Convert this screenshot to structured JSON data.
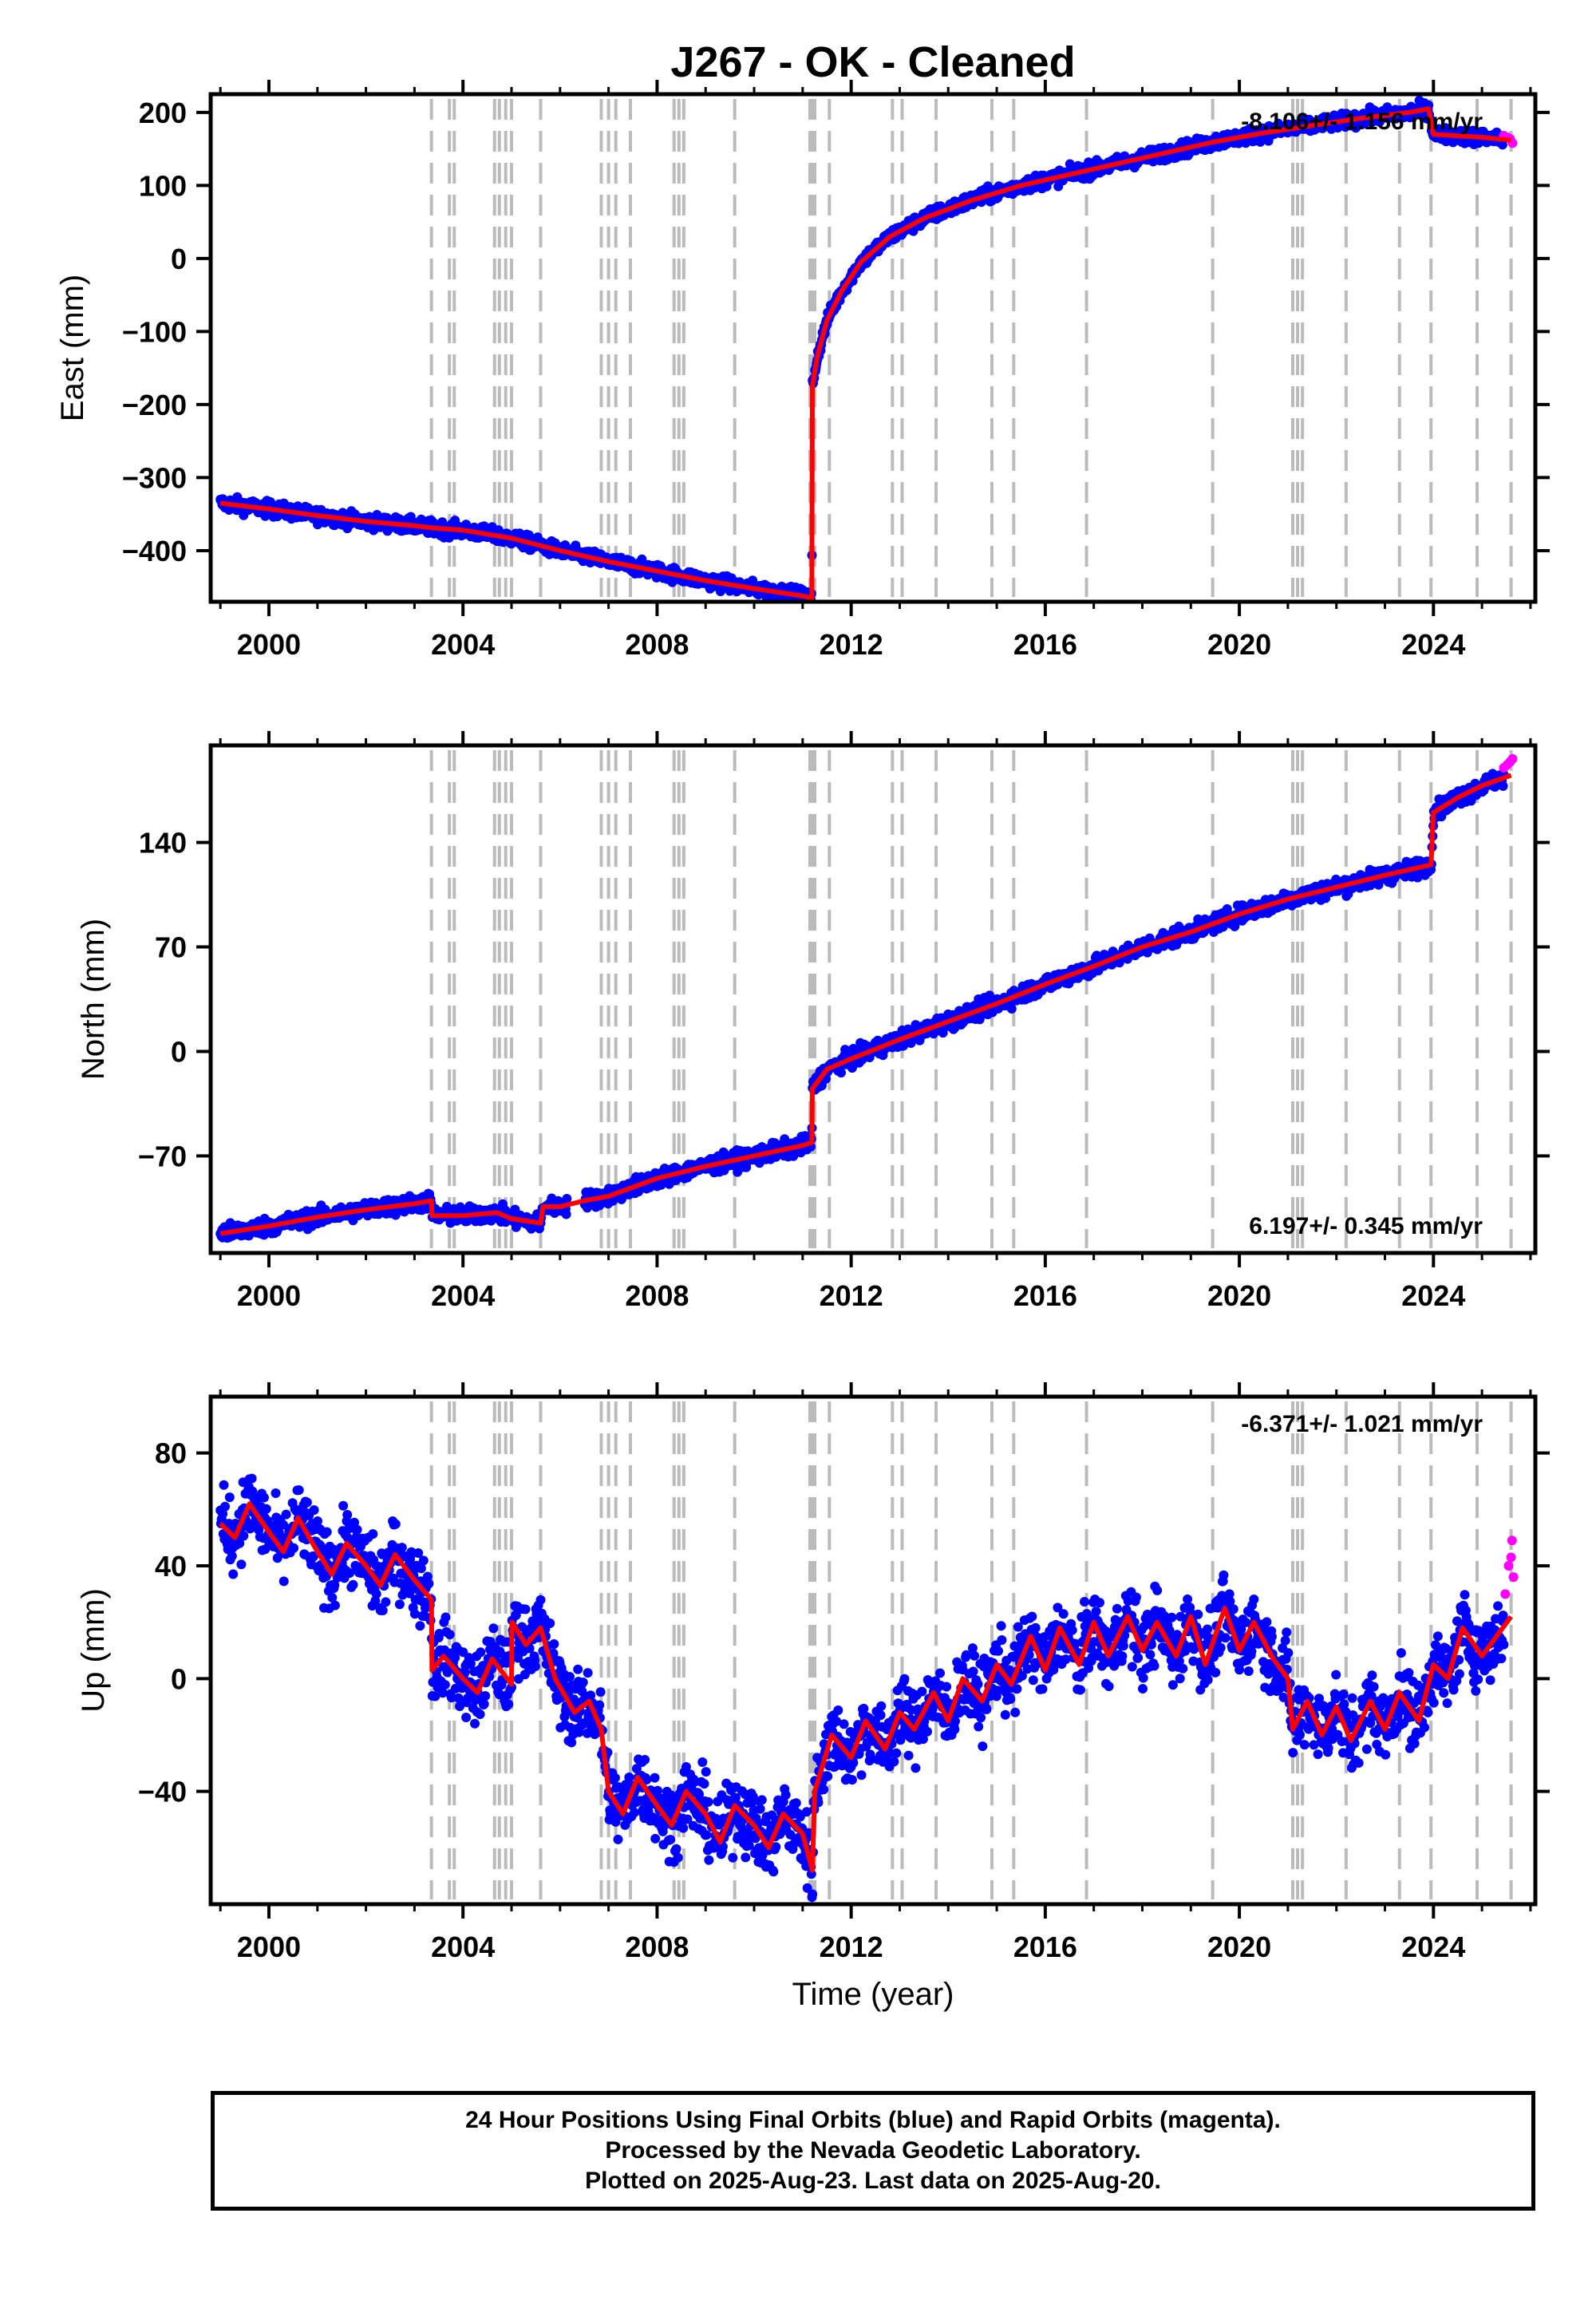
{
  "title": "J267  - OK - Cleaned",
  "xlabel": "Time (year)",
  "footer": {
    "line1": "24 Hour Positions Using Final Orbits (blue) and Rapid Orbits (magenta).",
    "line2": "Processed by the Nevada Geodetic Laboratory.",
    "line3": "Plotted on 2025-Aug-23. Last data on 2025-Aug-20."
  },
  "colors": {
    "final_orbits": "#0000ff",
    "rapid_orbits": "#ff00ff",
    "model": "#ff0000",
    "event_lines": "#bbbbbb",
    "frame": "#000000"
  },
  "chart_data": [
    {
      "type": "scatter",
      "ylabel": "East (mm)",
      "rate_text": "-8.106+/- 1.156 mm/yr",
      "rate_position": "top-right",
      "xlim": [
        1998.8,
        2026.1
      ],
      "ylim": [
        -470,
        225
      ],
      "xticks": [
        2000,
        2004,
        2008,
        2012,
        2016,
        2020,
        2024
      ],
      "yticks": [
        200,
        100,
        0,
        -100,
        -200,
        -300,
        -400
      ],
      "ytick_labels": [
        "200",
        "100",
        "0",
        "−100",
        "−200",
        "−300",
        "−400"
      ],
      "grid": false,
      "event_lines": [
        2003.35,
        2003.72,
        2003.82,
        2004.65,
        2004.75,
        2004.88,
        2005.0,
        2005.6,
        2006.85,
        2007.0,
        2007.15,
        2007.45,
        2008.35,
        2008.45,
        2008.55,
        2009.6,
        2011.15,
        2011.2,
        2011.25,
        2011.55,
        2012.85,
        2013.05,
        2013.75,
        2014.9,
        2015.35,
        2016.85,
        2019.45,
        2021.1,
        2021.2,
        2021.3,
        2022.2,
        2023.3,
        2023.95,
        2024.9,
        2025.6
      ],
      "model": [
        [
          1999.0,
          -335
        ],
        [
          2000.0,
          -343
        ],
        [
          2001.0,
          -352
        ],
        [
          2002.0,
          -360
        ],
        [
          2003.0,
          -366
        ],
        [
          2003.4,
          -369
        ],
        [
          2004.0,
          -372
        ],
        [
          2005.0,
          -383
        ],
        [
          2006.0,
          -400
        ],
        [
          2007.0,
          -415
        ],
        [
          2008.0,
          -428
        ],
        [
          2009.0,
          -441
        ],
        [
          2010.0,
          -452
        ],
        [
          2011.0,
          -462
        ],
        [
          2011.19,
          -465
        ],
        [
          2011.2,
          -175
        ],
        [
          2011.3,
          -135
        ],
        [
          2011.5,
          -85
        ],
        [
          2011.8,
          -45
        ],
        [
          2012.2,
          -5
        ],
        [
          2012.8,
          30
        ],
        [
          2013.5,
          55
        ],
        [
          2014.5,
          80
        ],
        [
          2015.5,
          100
        ],
        [
          2016.5,
          115
        ],
        [
          2017.5,
          130
        ],
        [
          2018.5,
          145
        ],
        [
          2019.5,
          160
        ],
        [
          2020.5,
          172
        ],
        [
          2021.5,
          182
        ],
        [
          2022.5,
          192
        ],
        [
          2023.5,
          200
        ],
        [
          2023.9,
          205
        ],
        [
          2024.0,
          170
        ],
        [
          2024.5,
          168
        ],
        [
          2025.0,
          166
        ],
        [
          2025.6,
          162
        ]
      ],
      "scatter_spread": 7,
      "rapid_points": [
        [
          2025.45,
          168
        ],
        [
          2025.52,
          166
        ],
        [
          2025.58,
          164
        ],
        [
          2025.63,
          158
        ]
      ]
    },
    {
      "type": "scatter",
      "ylabel": "North (mm)",
      "rate_text": "6.197+/- 0.345 mm/yr",
      "rate_position": "bottom-right",
      "xlim": [
        1998.8,
        2026.1
      ],
      "ylim": [
        -135,
        205
      ],
      "xticks": [
        2000,
        2004,
        2008,
        2012,
        2016,
        2020,
        2024
      ],
      "yticks": [
        140,
        70,
        0,
        -70
      ],
      "ytick_labels": [
        "140",
        "70",
        "0",
        "−70"
      ],
      "grid": false,
      "event_lines": [
        2003.35,
        2003.72,
        2003.82,
        2004.65,
        2004.75,
        2004.88,
        2005.0,
        2005.6,
        2006.85,
        2007.0,
        2007.15,
        2007.45,
        2008.35,
        2008.45,
        2008.55,
        2009.6,
        2011.15,
        2011.2,
        2011.25,
        2011.55,
        2012.85,
        2013.05,
        2013.75,
        2014.9,
        2015.35,
        2016.85,
        2019.45,
        2021.1,
        2021.2,
        2021.3,
        2022.2,
        2023.3,
        2023.95,
        2024.9,
        2025.6
      ],
      "model": [
        [
          1999.0,
          -122
        ],
        [
          2000.0,
          -117
        ],
        [
          2001.0,
          -111
        ],
        [
          2002.0,
          -106
        ],
        [
          2003.0,
          -102
        ],
        [
          2003.35,
          -100
        ],
        [
          2003.36,
          -110
        ],
        [
          2004.0,
          -110
        ],
        [
          2004.7,
          -108
        ],
        [
          2005.0,
          -112
        ],
        [
          2005.6,
          -115
        ],
        [
          2005.65,
          -104
        ],
        [
          2006.0,
          -104
        ],
        [
          2006.5,
          -100
        ],
        [
          2007.0,
          -97
        ],
        [
          2008.0,
          -85
        ],
        [
          2009.0,
          -77
        ],
        [
          2010.0,
          -70
        ],
        [
          2011.0,
          -63
        ],
        [
          2011.19,
          -61
        ],
        [
          2011.2,
          -25
        ],
        [
          2011.5,
          -12
        ],
        [
          2012.0,
          -5
        ],
        [
          2013.0,
          8
        ],
        [
          2014.0,
          20
        ],
        [
          2015.0,
          32
        ],
        [
          2016.0,
          45
        ],
        [
          2017.0,
          57
        ],
        [
          2018.0,
          70
        ],
        [
          2019.0,
          80
        ],
        [
          2020.0,
          92
        ],
        [
          2021.0,
          102
        ],
        [
          2022.0,
          110
        ],
        [
          2023.0,
          118
        ],
        [
          2023.95,
          125
        ],
        [
          2024.0,
          160
        ],
        [
          2024.5,
          170
        ],
        [
          2025.0,
          178
        ],
        [
          2025.6,
          185
        ]
      ],
      "scatter_spread": 4,
      "rapid_points": [
        [
          2025.45,
          190
        ],
        [
          2025.52,
          192
        ],
        [
          2025.58,
          194
        ],
        [
          2025.63,
          196
        ]
      ]
    },
    {
      "type": "scatter",
      "ylabel": "Up (mm)",
      "rate_text": "-6.371+/- 1.021 mm/yr",
      "rate_position": "top-right",
      "xlim": [
        1998.8,
        2026.1
      ],
      "ylim": [
        -80,
        100
      ],
      "xticks": [
        2000,
        2004,
        2008,
        2012,
        2016,
        2020,
        2024
      ],
      "yticks": [
        80,
        40,
        0,
        -40
      ],
      "ytick_labels": [
        "80",
        "40",
        "0",
        "−40"
      ],
      "grid": false,
      "event_lines": [
        2003.35,
        2003.72,
        2003.82,
        2004.65,
        2004.75,
        2004.88,
        2005.0,
        2005.6,
        2006.85,
        2007.0,
        2007.15,
        2007.45,
        2008.35,
        2008.45,
        2008.55,
        2009.6,
        2011.15,
        2011.2,
        2011.25,
        2011.55,
        2012.85,
        2013.05,
        2013.75,
        2014.9,
        2015.35,
        2016.85,
        2019.45,
        2021.1,
        2021.2,
        2021.3,
        2022.2,
        2023.3,
        2023.95,
        2024.9,
        2025.6
      ],
      "model": [
        [
          1999.0,
          55
        ],
        [
          1999.3,
          50
        ],
        [
          1999.6,
          62
        ],
        [
          2000.0,
          52
        ],
        [
          2000.3,
          45
        ],
        [
          2000.6,
          57
        ],
        [
          2001.0,
          45
        ],
        [
          2001.3,
          37
        ],
        [
          2001.6,
          48
        ],
        [
          2002.0,
          40
        ],
        [
          2002.3,
          33
        ],
        [
          2002.6,
          44
        ],
        [
          2003.0,
          35
        ],
        [
          2003.35,
          28
        ],
        [
          2003.36,
          3
        ],
        [
          2003.6,
          8
        ],
        [
          2004.0,
          0
        ],
        [
          2004.3,
          -5
        ],
        [
          2004.6,
          7
        ],
        [
          2005.0,
          -2
        ],
        [
          2005.01,
          20
        ],
        [
          2005.3,
          12
        ],
        [
          2005.6,
          18
        ],
        [
          2005.9,
          0
        ],
        [
          2006.3,
          -12
        ],
        [
          2006.6,
          -8
        ],
        [
          2006.85,
          -18
        ],
        [
          2007.0,
          -40
        ],
        [
          2007.3,
          -48
        ],
        [
          2007.6,
          -35
        ],
        [
          2008.0,
          -45
        ],
        [
          2008.3,
          -52
        ],
        [
          2008.6,
          -40
        ],
        [
          2009.0,
          -48
        ],
        [
          2009.3,
          -58
        ],
        [
          2009.6,
          -45
        ],
        [
          2010.0,
          -52
        ],
        [
          2010.3,
          -60
        ],
        [
          2010.6,
          -48
        ],
        [
          2011.0,
          -55
        ],
        [
          2011.2,
          -68
        ],
        [
          2011.25,
          -40
        ],
        [
          2011.6,
          -20
        ],
        [
          2012.0,
          -28
        ],
        [
          2012.3,
          -15
        ],
        [
          2012.7,
          -25
        ],
        [
          2013.0,
          -12
        ],
        [
          2013.3,
          -18
        ],
        [
          2013.7,
          -5
        ],
        [
          2014.0,
          -15
        ],
        [
          2014.3,
          0
        ],
        [
          2014.7,
          -8
        ],
        [
          2015.0,
          5
        ],
        [
          2015.3,
          -2
        ],
        [
          2015.7,
          15
        ],
        [
          2016.0,
          3
        ],
        [
          2016.3,
          18
        ],
        [
          2016.7,
          5
        ],
        [
          2017.0,
          20
        ],
        [
          2017.3,
          8
        ],
        [
          2017.7,
          22
        ],
        [
          2018.0,
          10
        ],
        [
          2018.3,
          20
        ],
        [
          2018.7,
          8
        ],
        [
          2019.0,
          22
        ],
        [
          2019.3,
          5
        ],
        [
          2019.7,
          25
        ],
        [
          2020.0,
          10
        ],
        [
          2020.3,
          20
        ],
        [
          2020.7,
          7
        ],
        [
          2021.0,
          0
        ],
        [
          2021.1,
          -18
        ],
        [
          2021.4,
          -8
        ],
        [
          2021.7,
          -20
        ],
        [
          2022.0,
          -10
        ],
        [
          2022.3,
          -22
        ],
        [
          2022.7,
          -8
        ],
        [
          2023.0,
          -18
        ],
        [
          2023.3,
          -5
        ],
        [
          2023.7,
          -15
        ],
        [
          2024.0,
          5
        ],
        [
          2024.3,
          0
        ],
        [
          2024.6,
          18
        ],
        [
          2025.0,
          8
        ],
        [
          2025.3,
          15
        ],
        [
          2025.6,
          22
        ]
      ],
      "scatter_spread": 9,
      "rapid_points": [
        [
          2025.48,
          30
        ],
        [
          2025.55,
          40
        ],
        [
          2025.6,
          43
        ],
        [
          2025.62,
          49
        ],
        [
          2025.65,
          36
        ]
      ]
    }
  ]
}
